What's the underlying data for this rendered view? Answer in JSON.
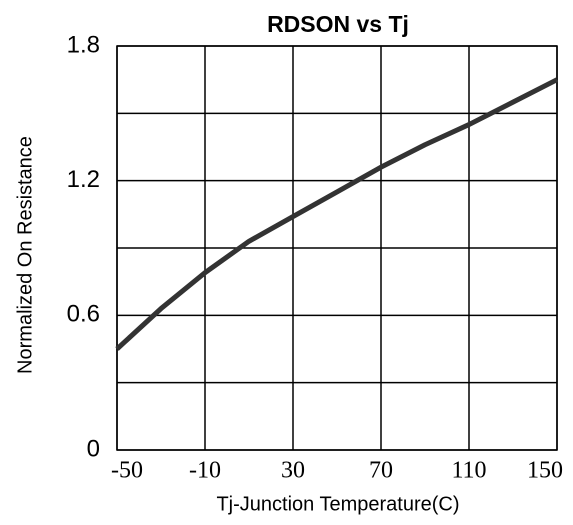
{
  "chart_data": {
    "type": "line",
    "title": "RDSON vs Tj",
    "xlabel": "Tj-Junction Temperature(C)",
    "ylabel": "Normalized On Resistance",
    "x": [
      -50,
      -30,
      -10,
      10,
      30,
      50,
      70,
      90,
      110,
      130,
      150
    ],
    "series": [
      {
        "name": "RDSON",
        "color": "#333333",
        "values": [
          0.45,
          0.63,
          0.79,
          0.93,
          1.04,
          1.15,
          1.26,
          1.36,
          1.45,
          1.55,
          1.65
        ]
      }
    ],
    "xlim": [
      -50,
      150
    ],
    "xticks": [
      -50,
      -10,
      30,
      70,
      110,
      150
    ],
    "ylim": [
      0,
      1.8
    ],
    "yticks": [
      0,
      0.6,
      1.2,
      1.8
    ],
    "minor_yticks": [
      0.3,
      0.9,
      1.5
    ],
    "grid": true
  }
}
